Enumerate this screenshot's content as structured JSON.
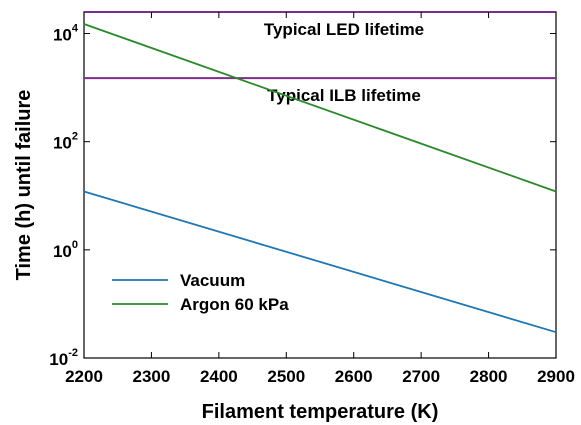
{
  "chart_data": {
    "type": "line",
    "xlabel": "Filament temperature (K)",
    "ylabel": "Time (h) until failure",
    "xlim": [
      2200,
      2900
    ],
    "ylim": [
      0.01,
      25000
    ],
    "yscale": "log",
    "x_ticks": [
      2200,
      2300,
      2400,
      2500,
      2600,
      2700,
      2800,
      2900
    ],
    "y_ticks": [
      {
        "value": 0.01,
        "base": "10",
        "exp": "-2"
      },
      {
        "value": 1,
        "base": "10",
        "exp": "0"
      },
      {
        "value": 100,
        "base": "10",
        "exp": "2"
      },
      {
        "value": 10000,
        "base": "10",
        "exp": "4"
      }
    ],
    "grid": false,
    "legend_position": "bottom-left",
    "series": [
      {
        "name": "Vacuum",
        "color": "#1f77b4",
        "x": [
          2200,
          2900
        ],
        "y": [
          12,
          0.03
        ]
      },
      {
        "name": "Argon 60 kPa",
        "color": "#2a8a2a",
        "x": [
          2200,
          2900
        ],
        "y": [
          15000,
          12
        ]
      }
    ],
    "reference_lines": [
      {
        "label": "Typical LED lifetime",
        "y": 25000,
        "color": "#7b2d8b"
      },
      {
        "label": "Typical ILB lifetime",
        "y": 1500,
        "color": "#7b2d8b"
      }
    ]
  }
}
